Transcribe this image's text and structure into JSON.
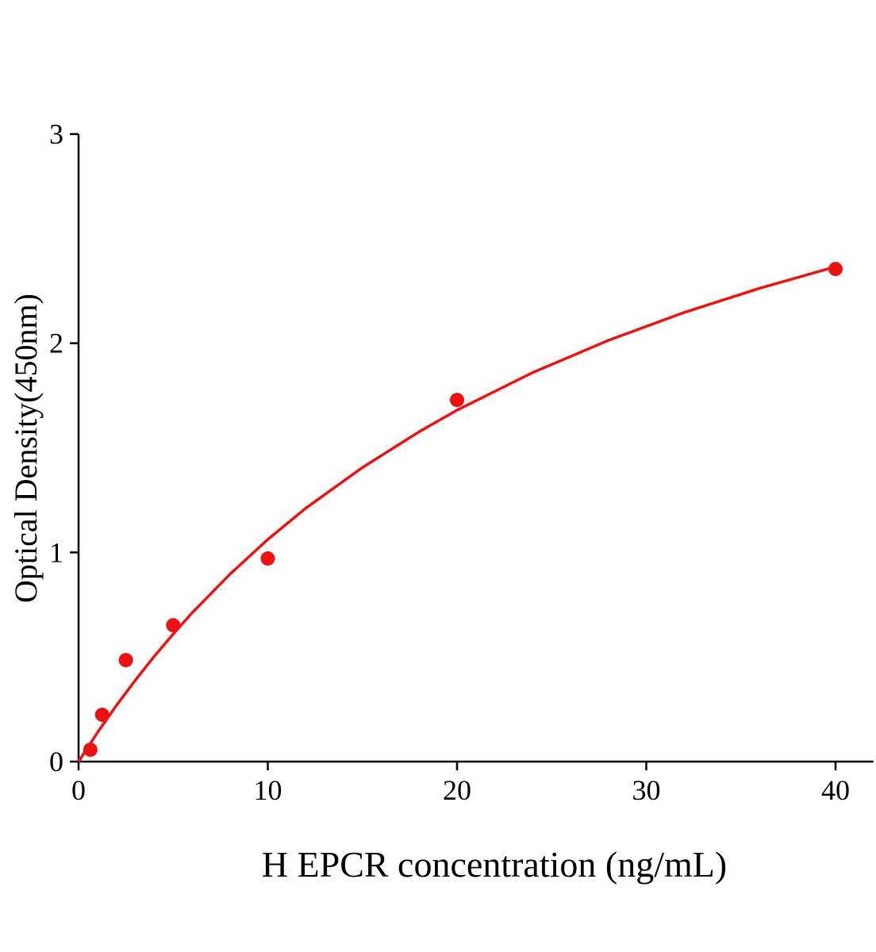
{
  "chart_data": {
    "type": "scatter",
    "title": "",
    "xlabel": "H EPCR concentration (ng/mL)",
    "ylabel": "Optical Density(450nm)",
    "xlim": [
      0,
      42
    ],
    "ylim": [
      0,
      3
    ],
    "xticks": [
      0,
      10,
      20,
      30,
      40
    ],
    "yticks": [
      0,
      1,
      2,
      3
    ],
    "grid": false,
    "color": "#ee1111",
    "points": {
      "x": [
        0.625,
        1.25,
        2.5,
        5,
        10,
        20,
        40
      ],
      "y": [
        0.057,
        0.224,
        0.485,
        0.652,
        0.971,
        1.729,
        2.355
      ]
    },
    "fit_curve": {
      "x": [
        0,
        1,
        2,
        3,
        4,
        5,
        6,
        8,
        10,
        12,
        15,
        18,
        20,
        24,
        28,
        32,
        36,
        40
      ],
      "y": [
        0,
        0.139,
        0.268,
        0.389,
        0.503,
        0.61,
        0.711,
        0.896,
        1.062,
        1.211,
        1.406,
        1.577,
        1.68,
        1.86,
        2.014,
        2.147,
        2.263,
        2.366
      ]
    }
  }
}
